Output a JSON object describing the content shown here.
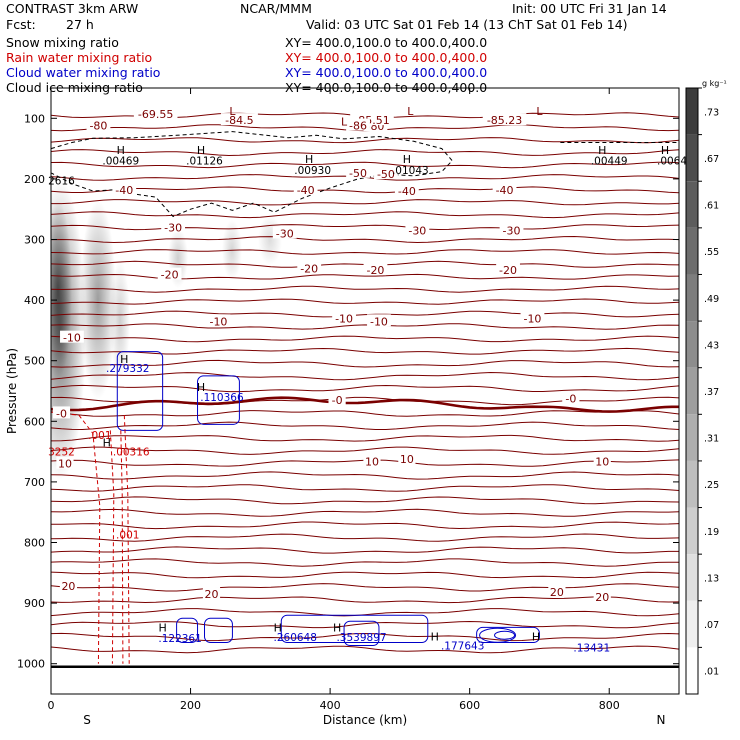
{
  "header": {
    "model": "CONTRAST  3km ARW",
    "org": "NCAR/MMM",
    "init": "Init: 00 UTC Fri 31 Jan 14",
    "fcst_label": "Fcst:",
    "fcst_value": "27 h",
    "valid": "Valid: 03 UTC Sat 01 Feb 14 (13 ChT Sat 01 Feb 14)",
    "fields": [
      {
        "name": "Snow mixing ratio",
        "xy": "XY= 400.0,100.0 to 400.0,400.0",
        "color": "#000000"
      },
      {
        "name": "Rain water mixing ratio",
        "xy": "XY= 400.0,100.0 to 400.0,400.0",
        "color": "#d00000"
      },
      {
        "name": "Cloud water mixing ratio",
        "xy": "XY= 400.0,100.0 to 400.0,400.0",
        "color": "#0000c8"
      },
      {
        "name": "Cloud ice mixing ratio",
        "xy": "XY= 400.0,100.0 to 400.0,400.0",
        "color": "#000000"
      }
    ]
  },
  "chart_data": {
    "type": "cross-section",
    "xlabel": "Distance (km)",
    "ylabel": "Pressure (hPa)",
    "xlim": [
      0,
      900
    ],
    "ylim": [
      1050,
      50
    ],
    "xticks": [
      0,
      200,
      400,
      600,
      800
    ],
    "yticks": [
      100,
      200,
      300,
      400,
      500,
      600,
      700,
      800,
      900,
      1000
    ],
    "end_labels": {
      "left": "S",
      "right": "N"
    },
    "colorbar": {
      "unit": "g kg⁻¹",
      "labels": [
        ".73",
        ".67",
        ".61",
        ".55",
        ".49",
        ".43",
        ".37",
        ".31",
        ".25",
        ".19",
        ".13",
        ".07",
        ".01"
      ]
    },
    "temperature_labels": [
      {
        "x": 150,
        "p": 93,
        "text": "-69.55"
      },
      {
        "x": 68,
        "p": 112,
        "text": "-80"
      },
      {
        "x": 270,
        "p": 103,
        "text": "-84.5"
      },
      {
        "x": 465,
        "p": 113,
        "text": "-80"
      },
      {
        "x": 460,
        "p": 103,
        "text": "-85.51"
      },
      {
        "x": 650,
        "p": 103,
        "text": "-85.23"
      },
      {
        "x": 440,
        "p": 112,
        "text": "-86"
      },
      {
        "x": 440,
        "p": 190,
        "text": "-50"
      },
      {
        "x": 480,
        "p": 192,
        "text": "-50"
      },
      {
        "x": 105,
        "p": 218,
        "text": "-40"
      },
      {
        "x": 365,
        "p": 218,
        "text": "-40"
      },
      {
        "x": 510,
        "p": 220,
        "text": "-40"
      },
      {
        "x": 650,
        "p": 218,
        "text": "-40"
      },
      {
        "x": 175,
        "p": 280,
        "text": "-30"
      },
      {
        "x": 335,
        "p": 290,
        "text": "-30"
      },
      {
        "x": 525,
        "p": 285,
        "text": "-30"
      },
      {
        "x": 660,
        "p": 285,
        "text": "-30"
      },
      {
        "x": 170,
        "p": 358,
        "text": "-20"
      },
      {
        "x": 370,
        "p": 348,
        "text": "-20"
      },
      {
        "x": 465,
        "p": 350,
        "text": "-20"
      },
      {
        "x": 655,
        "p": 350,
        "text": "-20"
      },
      {
        "x": 30,
        "p": 462,
        "text": "-10"
      },
      {
        "x": 240,
        "p": 435,
        "text": "-10"
      },
      {
        "x": 420,
        "p": 430,
        "text": "-10"
      },
      {
        "x": 470,
        "p": 435,
        "text": "-10"
      },
      {
        "x": 690,
        "p": 430,
        "text": "-10"
      },
      {
        "x": 15,
        "p": 587,
        "text": "-0"
      },
      {
        "x": 410,
        "p": 565,
        "text": "-0"
      },
      {
        "x": 745,
        "p": 562,
        "text": "-0"
      },
      {
        "x": 20,
        "p": 670,
        "text": "10"
      },
      {
        "x": 460,
        "p": 666,
        "text": "10"
      },
      {
        "x": 510,
        "p": 662,
        "text": "10"
      },
      {
        "x": 790,
        "p": 666,
        "text": "10"
      },
      {
        "x": 25,
        "p": 872,
        "text": "20"
      },
      {
        "x": 230,
        "p": 885,
        "text": "20"
      },
      {
        "x": 725,
        "p": 882,
        "text": "20"
      },
      {
        "x": 790,
        "p": 890,
        "text": "20"
      }
    ],
    "maxima_labels": [
      {
        "x": 100,
        "p": 170,
        "text": ".00469",
        "color": "#000000"
      },
      {
        "x": 220,
        "p": 170,
        "text": ".01126",
        "color": "#000000"
      },
      {
        "x": 375,
        "p": 185,
        "text": ".00930",
        "color": "#000000"
      },
      {
        "x": 515,
        "p": 185,
        "text": ".01043",
        "color": "#000000"
      },
      {
        "x": 800,
        "p": 170,
        "text": ".00449",
        "color": "#000000"
      },
      {
        "x": 890,
        "p": 170,
        "text": ".0064",
        "color": "#000000"
      },
      {
        "x": 15,
        "p": 203,
        "text": "2616",
        "color": "#000000"
      },
      {
        "x": 110,
        "p": 512,
        "text": ".279332",
        "color": "#0000c8"
      },
      {
        "x": 245,
        "p": 560,
        "text": ".110366",
        "color": "#0000c8"
      },
      {
        "x": 70,
        "p": 623,
        "text": ".001",
        "color": "#d00000"
      },
      {
        "x": 15,
        "p": 650,
        "text": "3252",
        "color": "#d00000"
      },
      {
        "x": 115,
        "p": 650,
        "text": ".00316",
        "color": "#d00000"
      },
      {
        "x": 110,
        "p": 787,
        "text": ".001",
        "color": "#d00000"
      },
      {
        "x": 185,
        "p": 958,
        "text": ".122361",
        "color": "#0000c8"
      },
      {
        "x": 350,
        "p": 956,
        "text": ".260648",
        "color": "#0000c8"
      },
      {
        "x": 445,
        "p": 956,
        "text": ".3539897",
        "color": "#0000c8"
      },
      {
        "x": 590,
        "p": 970,
        "text": ".177643",
        "color": "#0000c8"
      },
      {
        "x": 775,
        "p": 973,
        "text": ".13431",
        "color": "#0000c8"
      }
    ],
    "h_markers": [
      {
        "x": 100,
        "p": 152
      },
      {
        "x": 215,
        "p": 152
      },
      {
        "x": 370,
        "p": 167
      },
      {
        "x": 510,
        "p": 167
      },
      {
        "x": 790,
        "p": 152
      },
      {
        "x": 880,
        "p": 152
      },
      {
        "x": 105,
        "p": 497
      },
      {
        "x": 215,
        "p": 543
      },
      {
        "x": 80,
        "p": 635
      },
      {
        "x": 160,
        "p": 940
      },
      {
        "x": 325,
        "p": 940
      },
      {
        "x": 410,
        "p": 940
      },
      {
        "x": 550,
        "p": 955
      },
      {
        "x": 695,
        "p": 955
      }
    ],
    "l_markers": [
      {
        "x": 260,
        "p": 88
      },
      {
        "x": 420,
        "p": 105
      },
      {
        "x": 515,
        "p": 88
      },
      {
        "x": 700,
        "p": 88
      }
    ]
  }
}
